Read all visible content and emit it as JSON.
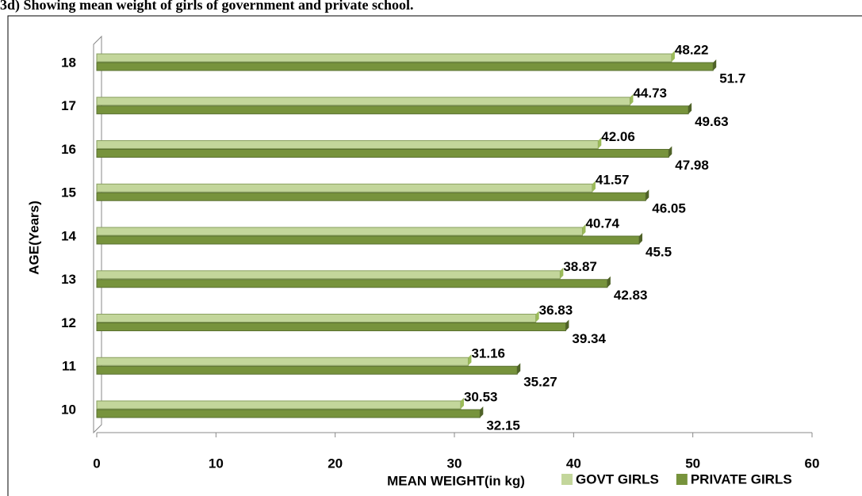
{
  "chart_data": {
    "type": "bar",
    "orientation": "horizontal",
    "title": "3d) Showing mean weight of girls of government and private school.",
    "x_label": "MEAN WEIGHT(in kg)",
    "y_label": "AGE(Years)",
    "categories": [
      "10",
      "11",
      "12",
      "13",
      "14",
      "15",
      "16",
      "17",
      "18"
    ],
    "series": [
      {
        "name": "GOVT GIRLS",
        "color": "#c3d69b",
        "values": [
          30.53,
          31.16,
          36.83,
          38.87,
          40.74,
          41.57,
          42.06,
          44.73,
          48.22
        ]
      },
      {
        "name": "PRIVATE GIRLS",
        "color": "#77933c",
        "values": [
          32.15,
          35.27,
          39.34,
          42.83,
          45.5,
          46.05,
          47.98,
          49.63,
          51.7
        ]
      }
    ],
    "xlim": [
      0,
      60
    ],
    "xticks": [
      0,
      10,
      20,
      30,
      40,
      50,
      60
    ],
    "legend": "bottom-right"
  }
}
